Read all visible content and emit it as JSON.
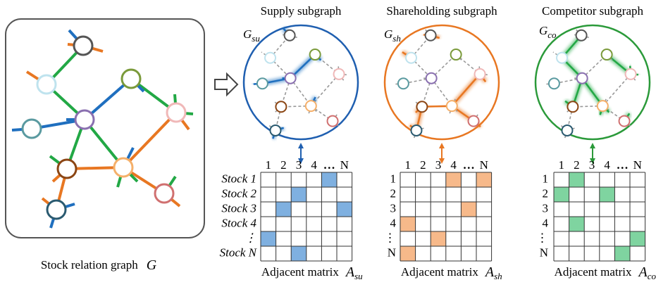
{
  "main_graph": {
    "caption": "Stock relation graph",
    "symbol": "G"
  },
  "subgraphs": [
    {
      "title": "Supply subgraph",
      "symbol": "G",
      "subscript": "su",
      "matrix": {
        "caption": "Adjacent matrix",
        "symbol": "A",
        "subscript": "su",
        "column_labels": [
          "1",
          "2",
          "3",
          "4",
          "…",
          "N"
        ],
        "row_labels": [
          "Stock 1",
          "Stock 2",
          "Stock 3",
          "Stock 4",
          "⋮",
          "Stock N"
        ]
      }
    },
    {
      "title": "Shareholding subgraph",
      "symbol": "G",
      "subscript": "sh",
      "matrix": {
        "caption": "Adjacent matrix",
        "symbol": "A",
        "subscript": "sh",
        "column_labels": [
          "1",
          "2",
          "3",
          "4",
          "…",
          "N"
        ],
        "row_labels": [
          "1",
          "2",
          "3",
          "4",
          "⋮",
          "N"
        ]
      }
    },
    {
      "title": "Competitor subgraph",
      "symbol": "G",
      "subscript": "co",
      "matrix": {
        "caption": "Adjacent matrix",
        "symbol": "A",
        "subscript": "co",
        "column_labels": [
          "1",
          "2",
          "3",
          "4",
          "…",
          "N"
        ],
        "row_labels": [
          "1",
          "2",
          "3",
          "4",
          "⋮",
          "N"
        ]
      }
    }
  ]
}
